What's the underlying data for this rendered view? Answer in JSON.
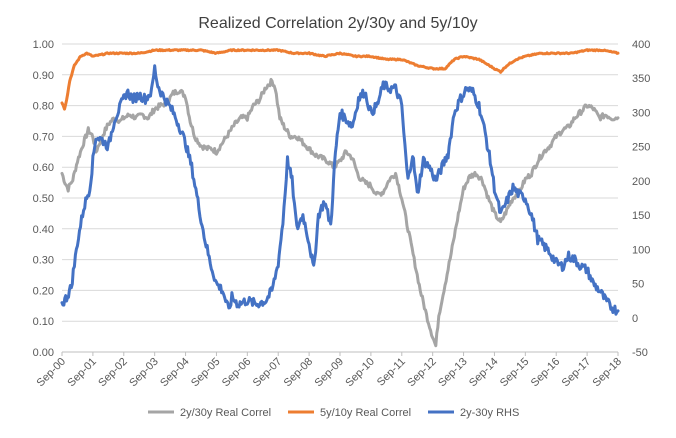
{
  "chart_data": {
    "type": "line",
    "title": "Realized Correlation 2y/30y and 5y/10y",
    "x_categories": [
      "Sep-00",
      "Sep-01",
      "Sep-02",
      "Sep-03",
      "Sep-04",
      "Sep-05",
      "Sep-06",
      "Sep-07",
      "Sep-08",
      "Sep-09",
      "Sep-10",
      "Sep-11",
      "Sep-12",
      "Sep-13",
      "Sep-14",
      "Sep-15",
      "Sep-16",
      "Sep-17",
      "Sep-18"
    ],
    "y_left": {
      "min": 0,
      "max": 1.0,
      "step": 0.1,
      "tick_labels": [
        "0.00",
        "0.10",
        "0.20",
        "0.30",
        "0.40",
        "0.50",
        "0.60",
        "0.70",
        "0.80",
        "0.90",
        "1.00"
      ]
    },
    "y_right": {
      "min": -50,
      "max": 400,
      "step": 50,
      "tick_labels": [
        "-50",
        "0",
        "50",
        "100",
        "150",
        "200",
        "250",
        "300",
        "350",
        "400"
      ]
    },
    "legend_position": "bottom",
    "series": [
      {
        "name": "2y/30y Real Correl",
        "axis": "left",
        "color": "#A5A5A5",
        "points": [
          [
            0,
            0.58
          ],
          [
            0.1,
            0.55
          ],
          [
            0.2,
            0.53
          ],
          [
            0.35,
            0.56
          ],
          [
            0.5,
            0.62
          ],
          [
            0.7,
            0.68
          ],
          [
            0.85,
            0.72
          ],
          [
            1.0,
            0.7
          ],
          [
            1.1,
            0.65
          ],
          [
            1.3,
            0.7
          ],
          [
            1.5,
            0.74
          ],
          [
            1.7,
            0.76
          ],
          [
            1.9,
            0.75
          ],
          [
            2.0,
            0.76
          ],
          [
            2.2,
            0.77
          ],
          [
            2.4,
            0.76
          ],
          [
            2.6,
            0.77
          ],
          [
            2.8,
            0.76
          ],
          [
            3.0,
            0.79
          ],
          [
            3.2,
            0.8
          ],
          [
            3.4,
            0.81
          ],
          [
            3.6,
            0.84
          ],
          [
            3.8,
            0.85
          ],
          [
            4.0,
            0.83
          ],
          [
            4.15,
            0.75
          ],
          [
            4.3,
            0.7
          ],
          [
            4.5,
            0.67
          ],
          [
            4.7,
            0.66
          ],
          [
            4.85,
            0.66
          ],
          [
            5.0,
            0.65
          ],
          [
            5.2,
            0.68
          ],
          [
            5.4,
            0.71
          ],
          [
            5.6,
            0.74
          ],
          [
            5.8,
            0.76
          ],
          [
            6.0,
            0.76
          ],
          [
            6.2,
            0.8
          ],
          [
            6.4,
            0.82
          ],
          [
            6.6,
            0.86
          ],
          [
            6.8,
            0.88
          ],
          [
            6.9,
            0.86
          ],
          [
            7.05,
            0.76
          ],
          [
            7.2,
            0.73
          ],
          [
            7.4,
            0.7
          ],
          [
            7.6,
            0.7
          ],
          [
            7.8,
            0.68
          ],
          [
            8.0,
            0.66
          ],
          [
            8.2,
            0.64
          ],
          [
            8.4,
            0.63
          ],
          [
            8.6,
            0.62
          ],
          [
            8.8,
            0.6
          ],
          [
            9.0,
            0.62
          ],
          [
            9.2,
            0.65
          ],
          [
            9.4,
            0.63
          ],
          [
            9.6,
            0.57
          ],
          [
            9.8,
            0.55
          ],
          [
            10.0,
            0.54
          ],
          [
            10.2,
            0.51
          ],
          [
            10.4,
            0.52
          ],
          [
            10.6,
            0.56
          ],
          [
            10.8,
            0.58
          ],
          [
            11.0,
            0.5
          ],
          [
            11.2,
            0.4
          ],
          [
            11.4,
            0.3
          ],
          [
            11.6,
            0.2
          ],
          [
            11.8,
            0.12
          ],
          [
            12.0,
            0.05
          ],
          [
            12.1,
            0.02
          ],
          [
            12.2,
            0.12
          ],
          [
            12.4,
            0.22
          ],
          [
            12.6,
            0.32
          ],
          [
            12.8,
            0.43
          ],
          [
            13.0,
            0.53
          ],
          [
            13.2,
            0.57
          ],
          [
            13.4,
            0.58
          ],
          [
            13.6,
            0.56
          ],
          [
            13.8,
            0.5
          ],
          [
            14.0,
            0.45
          ],
          [
            14.2,
            0.42
          ],
          [
            14.4,
            0.46
          ],
          [
            14.6,
            0.5
          ],
          [
            14.8,
            0.52
          ],
          [
            15.0,
            0.56
          ],
          [
            15.2,
            0.58
          ],
          [
            15.4,
            0.62
          ],
          [
            15.6,
            0.65
          ],
          [
            15.8,
            0.67
          ],
          [
            16.0,
            0.7
          ],
          [
            16.2,
            0.72
          ],
          [
            16.4,
            0.73
          ],
          [
            16.6,
            0.76
          ],
          [
            16.8,
            0.78
          ],
          [
            17.0,
            0.8
          ],
          [
            17.2,
            0.79
          ],
          [
            17.4,
            0.76
          ],
          [
            17.6,
            0.77
          ],
          [
            17.8,
            0.76
          ],
          [
            18.0,
            0.76
          ]
        ]
      },
      {
        "name": "5y/10y Real Correl",
        "axis": "left",
        "color": "#ED7D31",
        "points": [
          [
            0,
            0.81
          ],
          [
            0.08,
            0.79
          ],
          [
            0.15,
            0.82
          ],
          [
            0.25,
            0.88
          ],
          [
            0.4,
            0.93
          ],
          [
            0.6,
            0.96
          ],
          [
            0.8,
            0.97
          ],
          [
            1.0,
            0.96
          ],
          [
            1.5,
            0.97
          ],
          [
            2.0,
            0.97
          ],
          [
            2.5,
            0.97
          ],
          [
            3.0,
            0.98
          ],
          [
            3.5,
            0.98
          ],
          [
            4.0,
            0.98
          ],
          [
            4.5,
            0.98
          ],
          [
            5.0,
            0.97
          ],
          [
            5.5,
            0.98
          ],
          [
            6.0,
            0.98
          ],
          [
            6.5,
            0.98
          ],
          [
            7.0,
            0.98
          ],
          [
            7.5,
            0.97
          ],
          [
            8.0,
            0.97
          ],
          [
            8.5,
            0.96
          ],
          [
            9.0,
            0.97
          ],
          [
            9.5,
            0.96
          ],
          [
            10.0,
            0.96
          ],
          [
            10.5,
            0.95
          ],
          [
            11.0,
            0.95
          ],
          [
            11.5,
            0.93
          ],
          [
            12.0,
            0.92
          ],
          [
            12.4,
            0.92
          ],
          [
            12.7,
            0.95
          ],
          [
            13.0,
            0.96
          ],
          [
            13.5,
            0.95
          ],
          [
            14.0,
            0.92
          ],
          [
            14.2,
            0.91
          ],
          [
            14.4,
            0.93
          ],
          [
            14.7,
            0.95
          ],
          [
            15.0,
            0.96
          ],
          [
            15.5,
            0.97
          ],
          [
            16.0,
            0.97
          ],
          [
            16.5,
            0.97
          ],
          [
            17.0,
            0.98
          ],
          [
            17.5,
            0.98
          ],
          [
            18.0,
            0.97
          ]
        ]
      },
      {
        "name": "2y-30y RHS",
        "axis": "right",
        "color": "#4472C4",
        "points": [
          [
            0,
            20
          ],
          [
            0.15,
            30
          ],
          [
            0.3,
            45
          ],
          [
            0.5,
            110
          ],
          [
            0.7,
            160
          ],
          [
            0.9,
            190
          ],
          [
            1.0,
            230
          ],
          [
            1.1,
            265
          ],
          [
            1.3,
            260
          ],
          [
            1.5,
            250
          ],
          [
            1.7,
            290
          ],
          [
            1.9,
            310
          ],
          [
            2.1,
            330
          ],
          [
            2.3,
            320
          ],
          [
            2.5,
            325
          ],
          [
            2.7,
            320
          ],
          [
            2.9,
            330
          ],
          [
            3.0,
            365
          ],
          [
            3.1,
            340
          ],
          [
            3.2,
            330
          ],
          [
            3.4,
            315
          ],
          [
            3.6,
            300
          ],
          [
            3.8,
            280
          ],
          [
            4.0,
            255
          ],
          [
            4.2,
            220
          ],
          [
            4.4,
            170
          ],
          [
            4.6,
            120
          ],
          [
            4.8,
            80
          ],
          [
            5.0,
            50
          ],
          [
            5.2,
            40
          ],
          [
            5.3,
            25
          ],
          [
            5.4,
            10
          ],
          [
            5.5,
            30
          ],
          [
            5.7,
            20
          ],
          [
            6.0,
            25
          ],
          [
            6.3,
            20
          ],
          [
            6.6,
            25
          ],
          [
            6.8,
            40
          ],
          [
            7.0,
            80
          ],
          [
            7.15,
            140
          ],
          [
            7.3,
            230
          ],
          [
            7.45,
            200
          ],
          [
            7.6,
            130
          ],
          [
            7.8,
            150
          ],
          [
            8.0,
            110
          ],
          [
            8.15,
            70
          ],
          [
            8.3,
            150
          ],
          [
            8.5,
            170
          ],
          [
            8.7,
            135
          ],
          [
            8.85,
            240
          ],
          [
            9.0,
            300
          ],
          [
            9.2,
            290
          ],
          [
            9.4,
            280
          ],
          [
            9.6,
            320
          ],
          [
            9.8,
            330
          ],
          [
            10.0,
            300
          ],
          [
            10.2,
            310
          ],
          [
            10.4,
            340
          ],
          [
            10.6,
            335
          ],
          [
            10.8,
            335
          ],
          [
            11.0,
            310
          ],
          [
            11.1,
            250
          ],
          [
            11.2,
            200
          ],
          [
            11.35,
            240
          ],
          [
            11.5,
            180
          ],
          [
            11.7,
            230
          ],
          [
            11.9,
            220
          ],
          [
            12.1,
            200
          ],
          [
            12.3,
            220
          ],
          [
            12.5,
            240
          ],
          [
            12.7,
            300
          ],
          [
            12.9,
            320
          ],
          [
            13.1,
            335
          ],
          [
            13.3,
            330
          ],
          [
            13.5,
            310
          ],
          [
            13.7,
            270
          ],
          [
            13.9,
            220
          ],
          [
            14.0,
            190
          ],
          [
            14.2,
            150
          ],
          [
            14.4,
            170
          ],
          [
            14.6,
            190
          ],
          [
            14.8,
            180
          ],
          [
            15.0,
            175
          ],
          [
            15.2,
            150
          ],
          [
            15.4,
            115
          ],
          [
            15.6,
            105
          ],
          [
            15.8,
            95
          ],
          [
            16.0,
            80
          ],
          [
            16.2,
            75
          ],
          [
            16.4,
            90
          ],
          [
            16.6,
            85
          ],
          [
            16.8,
            75
          ],
          [
            17.0,
            70
          ],
          [
            17.2,
            50
          ],
          [
            17.4,
            40
          ],
          [
            17.6,
            25
          ],
          [
            17.8,
            15
          ],
          [
            18.0,
            10
          ]
        ]
      }
    ]
  }
}
